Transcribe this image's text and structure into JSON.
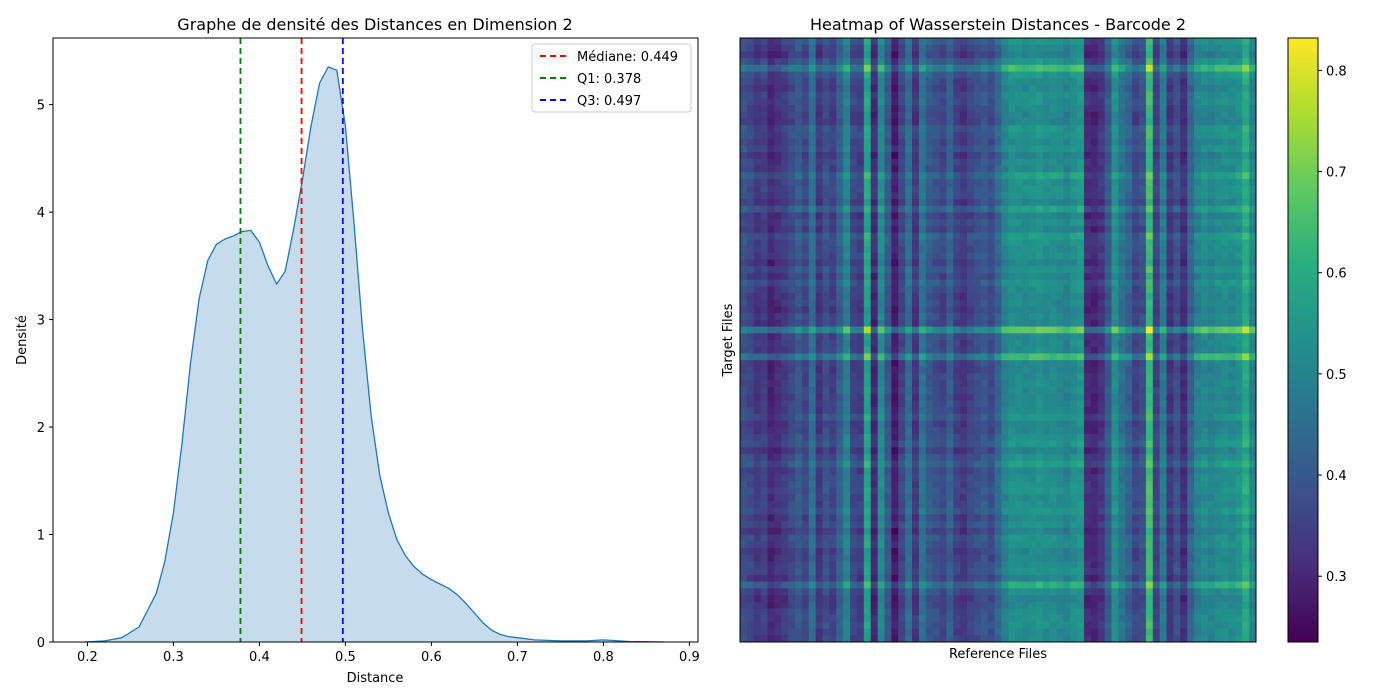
{
  "chart_data": [
    {
      "type": "area",
      "title": "Graphe de densité des Distances en Dimension 2",
      "xlabel": "Distance",
      "ylabel": "Densité",
      "xlim": [
        0.16,
        0.91
      ],
      "ylim": [
        0,
        5.62
      ],
      "x_ticks": [
        "0.2",
        "0.3",
        "0.4",
        "0.5",
        "0.6",
        "0.7",
        "0.8",
        "0.9"
      ],
      "x_tick_values": [
        0.2,
        0.3,
        0.4,
        0.5,
        0.6,
        0.7,
        0.8,
        0.9
      ],
      "y_ticks": [
        "0",
        "1",
        "2",
        "3",
        "4",
        "5"
      ],
      "y_tick_values": [
        0,
        1,
        2,
        3,
        4,
        5
      ],
      "curve_color": "#1f77b4",
      "fill_color": "#c6dbec",
      "density": {
        "x": [
          0.197,
          0.22,
          0.24,
          0.26,
          0.28,
          0.29,
          0.3,
          0.31,
          0.32,
          0.33,
          0.34,
          0.35,
          0.36,
          0.37,
          0.38,
          0.39,
          0.4,
          0.41,
          0.42,
          0.43,
          0.44,
          0.45,
          0.46,
          0.47,
          0.48,
          0.49,
          0.5,
          0.51,
          0.52,
          0.53,
          0.54,
          0.55,
          0.56,
          0.57,
          0.58,
          0.59,
          0.6,
          0.61,
          0.62,
          0.63,
          0.64,
          0.65,
          0.66,
          0.67,
          0.68,
          0.69,
          0.7,
          0.72,
          0.75,
          0.78,
          0.8,
          0.83,
          0.87
        ],
        "y": [
          0.0,
          0.01,
          0.04,
          0.14,
          0.45,
          0.75,
          1.2,
          1.85,
          2.6,
          3.2,
          3.55,
          3.7,
          3.75,
          3.78,
          3.82,
          3.83,
          3.72,
          3.5,
          3.33,
          3.45,
          3.85,
          4.3,
          4.8,
          5.2,
          5.35,
          5.32,
          4.8,
          3.9,
          2.9,
          2.1,
          1.55,
          1.2,
          0.95,
          0.8,
          0.7,
          0.63,
          0.58,
          0.54,
          0.5,
          0.44,
          0.36,
          0.27,
          0.18,
          0.11,
          0.07,
          0.05,
          0.04,
          0.02,
          0.01,
          0.01,
          0.02,
          0.005,
          0.0
        ]
      },
      "vlines": [
        {
          "label": "Médiane: 0.449",
          "x": 0.449,
          "color": "#ff0000"
        },
        {
          "label": "Q1: 0.378",
          "x": 0.378,
          "color": "#008000"
        },
        {
          "label": "Q3: 0.497",
          "x": 0.497,
          "color": "#0000ff"
        }
      ],
      "legend_position": "top-right",
      "grid": false
    },
    {
      "type": "heatmap",
      "title": "Heatmap of Wasserstein Distances - Barcode 2",
      "xlabel": "Reference Files",
      "ylabel": "Target Files",
      "colormap": "viridis",
      "color_range": [
        0.235,
        0.832
      ],
      "colorbar_ticks": [
        "0.3",
        "0.4",
        "0.5",
        "0.6",
        "0.7",
        "0.8"
      ],
      "colorbar_tick_values": [
        0.3,
        0.4,
        0.5,
        0.6,
        0.7,
        0.8
      ],
      "n_columns": 75,
      "n_rows": 90,
      "column_base": [
        0.38,
        0.36,
        0.33,
        0.35,
        0.3,
        0.32,
        0.34,
        0.37,
        0.4,
        0.36,
        0.45,
        0.33,
        0.38,
        0.35,
        0.42,
        0.5,
        0.36,
        0.34,
        0.58,
        0.3,
        0.52,
        0.4,
        0.28,
        0.36,
        0.45,
        0.33,
        0.46,
        0.4,
        0.38,
        0.36,
        0.42,
        0.35,
        0.33,
        0.36,
        0.38,
        0.4,
        0.37,
        0.43,
        0.5,
        0.53,
        0.53,
        0.52,
        0.53,
        0.54,
        0.52,
        0.53,
        0.52,
        0.5,
        0.53,
        0.55,
        0.31,
        0.3,
        0.33,
        0.4,
        0.53,
        0.46,
        0.42,
        0.36,
        0.38,
        0.64,
        0.35,
        0.48,
        0.33,
        0.38,
        0.31,
        0.43,
        0.5,
        0.52,
        0.5,
        0.52,
        0.53,
        0.52,
        0.54,
        0.6,
        0.5
      ],
      "row_offset": [
        0,
        0,
        0,
        0,
        0.12,
        0,
        0,
        0,
        0,
        0,
        0,
        0,
        0,
        0,
        0,
        0,
        0,
        0,
        0,
        0,
        0.06,
        0,
        0,
        0,
        0,
        0.03,
        0,
        0,
        0,
        0.05,
        0,
        0,
        0,
        0,
        0,
        0,
        0,
        0,
        0,
        0,
        0,
        0,
        0,
        0.15,
        0,
        0,
        0,
        0.13,
        0,
        0,
        0,
        0,
        0,
        0,
        0,
        0,
        0,
        0,
        0,
        0,
        0,
        0,
        0,
        0.04,
        0,
        0,
        0,
        0,
        0,
        0,
        0,
        0,
        0,
        0,
        0,
        0,
        0,
        0,
        0,
        0,
        0,
        0.09,
        0,
        0,
        0,
        0,
        0,
        0,
        0,
        0,
        0
      ]
    }
  ]
}
